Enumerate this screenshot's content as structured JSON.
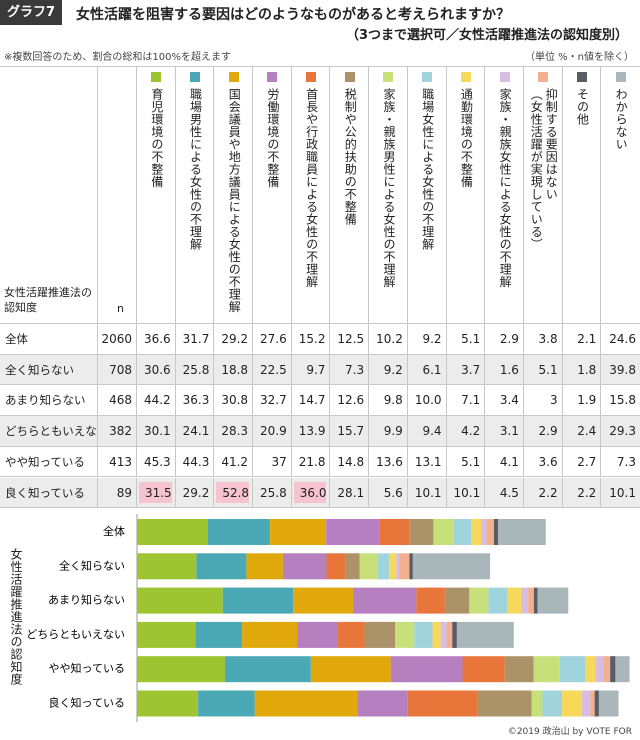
{
  "header": {
    "badge": "グラフ7",
    "title": "女性活躍を阻害する要因はどのようなものがあると考えられますか？",
    "subtitle": "（3つまで選択可／女性活躍推進法の認知度別）",
    "note": "※複数回答のため、割合の総和は100%を超えます",
    "unit": "（単位 %・n値を除く）"
  },
  "chart_data": {
    "type": "bar",
    "row_header": "女性活躍推進法の認知度",
    "n_header": "n",
    "y_label": "女性活躍推進法の認知度",
    "categories": [
      "全体",
      "全く知らない",
      "あまり知らない",
      "どちらともいえない",
      "やや知っている",
      "良く知っている"
    ],
    "n": [
      2060,
      708,
      468,
      382,
      413,
      89
    ],
    "highlight_color": "#f6c4cf",
    "highlights": [
      [
        5,
        0
      ],
      [
        5,
        2
      ],
      [
        5,
        4
      ]
    ],
    "series": [
      {
        "name": "育児環境の不整備",
        "color": "#9dc431",
        "values": [
          36.6,
          30.6,
          44.2,
          30.1,
          45.3,
          31.5
        ]
      },
      {
        "name": "職場男性による女性の不理解",
        "color": "#4ba8b5",
        "values": [
          31.7,
          25.8,
          36.3,
          24.1,
          44.3,
          29.2
        ]
      },
      {
        "name": "国会議員や地方議員による女性の不理解",
        "color": "#e0a80a",
        "values": [
          29.2,
          18.8,
          30.8,
          28.3,
          41.2,
          52.8
        ]
      },
      {
        "name": "労働環境の不整備",
        "color": "#b57fc0",
        "values": [
          27.6,
          22.5,
          32.7,
          20.9,
          37.0,
          25.8
        ]
      },
      {
        "name": "首長や行政職員による女性の不理解",
        "color": "#e8763a",
        "values": [
          15.2,
          9.7,
          14.7,
          13.9,
          21.8,
          36.0
        ],
        "value_labels": [
          "15.2",
          "9.7",
          "14.7",
          "13.9",
          "21.8",
          "36.0"
        ]
      },
      {
        "name": "税制や公的扶助の不整備",
        "color": "#ab9268",
        "values": [
          12.5,
          7.3,
          12.6,
          15.7,
          14.8,
          28.1
        ]
      },
      {
        "name": "家族・親族男性による女性の不理解",
        "color": "#c8e07a",
        "values": [
          10.2,
          9.2,
          9.8,
          9.9,
          13.6,
          5.6
        ]
      },
      {
        "name": "職場女性による女性の不理解",
        "color": "#9fd4dc",
        "values": [
          9.2,
          6.1,
          10.0,
          9.4,
          13.1,
          10.1
        ],
        "value_labels": [
          "9.2",
          "6.1",
          "10.0",
          "9.4",
          "13.1",
          "10.1"
        ]
      },
      {
        "name": "通勤環境の不整備",
        "color": "#f6d85a",
        "values": [
          5.1,
          3.7,
          7.1,
          4.2,
          5.1,
          10.1
        ]
      },
      {
        "name": "家族・親族女性による女性の不理解",
        "color": "#d8bce2",
        "values": [
          2.9,
          1.6,
          3.4,
          3.1,
          4.1,
          4.5
        ]
      },
      {
        "name": "抑制する要因はない\n（女性活躍が実現している）",
        "color": "#f2b08e",
        "values": [
          3.8,
          5.1,
          3.0,
          2.9,
          3.6,
          2.2
        ]
      },
      {
        "name": "その他",
        "color": "#585d64",
        "values": [
          2.1,
          1.8,
          1.9,
          2.4,
          2.7,
          2.2
        ]
      },
      {
        "name": "わからない",
        "color": "#a9b7bb",
        "values": [
          24.6,
          39.8,
          15.8,
          29.3,
          7.3,
          10.1
        ]
      }
    ]
  },
  "footer": "©2019 政治山 by VOTE FOR"
}
